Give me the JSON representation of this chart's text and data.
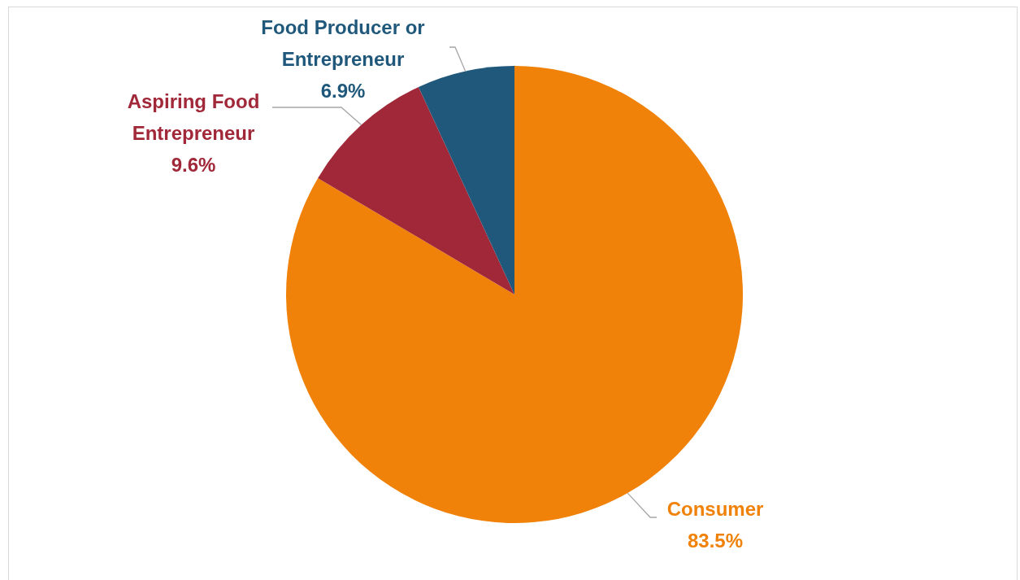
{
  "chart_data": {
    "type": "pie",
    "categories": [
      "Consumer",
      "Aspiring Food Entrepreneur",
      "Food Producer or Entrepreneur"
    ],
    "values": [
      83.5,
      9.6,
      6.9
    ],
    "colors": [
      "#f0820a",
      "#a12838",
      "#1f587a"
    ],
    "value_labels": [
      "83.5%",
      "9.6%",
      "6.9%"
    ]
  }
}
